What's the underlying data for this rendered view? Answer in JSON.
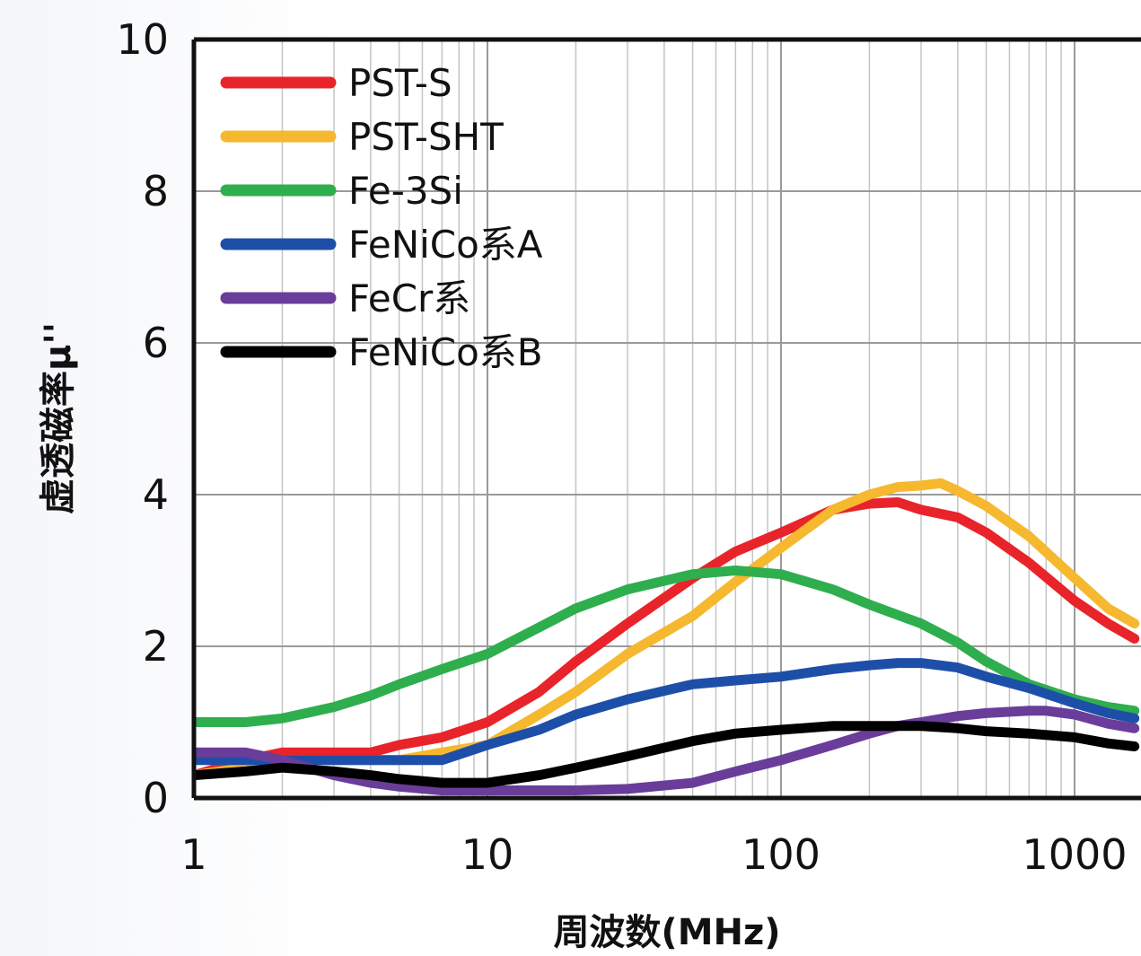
{
  "chart_data": {
    "type": "line",
    "x_scale": "log",
    "xlim": [
      1,
      1600
    ],
    "ylim": [
      0,
      10
    ],
    "xlabel": "周波数(MHz)",
    "ylabel": "虚透磁率μ''",
    "x_ticks": [
      1,
      10,
      100,
      1000
    ],
    "x_tick_labels": [
      "1",
      "10",
      "100",
      "1000"
    ],
    "y_ticks": [
      0,
      2,
      4,
      6,
      8,
      10
    ],
    "y_tick_labels": [
      "0",
      "2",
      "4",
      "6",
      "8",
      "10"
    ],
    "grid": true,
    "legend_position": "top-left",
    "series": [
      {
        "name": "PST-S",
        "color": "#e8242a",
        "x": [
          1,
          1.5,
          2,
          3,
          4,
          5,
          7,
          10,
          15,
          20,
          30,
          50,
          70,
          100,
          150,
          200,
          250,
          300,
          400,
          500,
          700,
          1000,
          1300,
          1600
        ],
        "y": [
          0.3,
          0.5,
          0.6,
          0.6,
          0.6,
          0.7,
          0.8,
          1.0,
          1.4,
          1.8,
          2.3,
          2.9,
          3.25,
          3.5,
          3.8,
          3.88,
          3.9,
          3.8,
          3.7,
          3.5,
          3.1,
          2.6,
          2.3,
          2.1
        ]
      },
      {
        "name": "PST-SHT",
        "color": "#f5b82e",
        "x": [
          1,
          1.5,
          2,
          3,
          4,
          5,
          7,
          10,
          15,
          20,
          30,
          50,
          70,
          100,
          150,
          200,
          250,
          300,
          350,
          400,
          500,
          700,
          1000,
          1300,
          1600
        ],
        "y": [
          0.3,
          0.4,
          0.5,
          0.5,
          0.5,
          0.5,
          0.6,
          0.7,
          1.1,
          1.4,
          1.9,
          2.4,
          2.85,
          3.3,
          3.8,
          4.0,
          4.1,
          4.12,
          4.15,
          4.05,
          3.85,
          3.45,
          2.9,
          2.5,
          2.3
        ]
      },
      {
        "name": "Fe-3Si",
        "color": "#2fae4e",
        "x": [
          1,
          1.5,
          2,
          3,
          4,
          5,
          7,
          10,
          15,
          20,
          30,
          50,
          70,
          100,
          150,
          200,
          300,
          400,
          500,
          700,
          1000,
          1300,
          1600
        ],
        "y": [
          1.0,
          1.0,
          1.05,
          1.2,
          1.35,
          1.5,
          1.7,
          1.9,
          2.25,
          2.5,
          2.75,
          2.95,
          3.0,
          2.95,
          2.75,
          2.55,
          2.3,
          2.05,
          1.8,
          1.5,
          1.3,
          1.2,
          1.15
        ]
      },
      {
        "name": "FeNiCo系A",
        "color": "#1e4fa8",
        "x": [
          1,
          1.5,
          2,
          3,
          4,
          5,
          7,
          10,
          15,
          20,
          30,
          50,
          70,
          100,
          150,
          200,
          250,
          300,
          400,
          500,
          700,
          1000,
          1300,
          1600
        ],
        "y": [
          0.5,
          0.5,
          0.5,
          0.5,
          0.5,
          0.5,
          0.5,
          0.7,
          0.9,
          1.1,
          1.3,
          1.5,
          1.55,
          1.6,
          1.7,
          1.75,
          1.78,
          1.78,
          1.72,
          1.6,
          1.45,
          1.25,
          1.12,
          1.05
        ]
      },
      {
        "name": "FeCr系",
        "color": "#6a3d9a",
        "x": [
          1,
          1.5,
          2,
          3,
          4,
          5,
          7,
          10,
          15,
          20,
          30,
          50,
          70,
          100,
          150,
          200,
          250,
          300,
          400,
          500,
          700,
          800,
          1000,
          1300,
          1600
        ],
        "y": [
          0.6,
          0.6,
          0.5,
          0.3,
          0.2,
          0.15,
          0.1,
          0.1,
          0.1,
          0.1,
          0.12,
          0.2,
          0.35,
          0.5,
          0.7,
          0.85,
          0.95,
          1.0,
          1.08,
          1.12,
          1.15,
          1.15,
          1.1,
          0.98,
          0.92
        ]
      },
      {
        "name": "FeNiCo系B",
        "color": "#000000",
        "x": [
          1,
          1.5,
          2,
          3,
          4,
          5,
          7,
          10,
          15,
          20,
          30,
          50,
          70,
          100,
          150,
          200,
          300,
          400,
          500,
          700,
          1000,
          1300,
          1600
        ],
        "y": [
          0.3,
          0.35,
          0.4,
          0.35,
          0.3,
          0.25,
          0.2,
          0.2,
          0.3,
          0.4,
          0.55,
          0.75,
          0.85,
          0.9,
          0.95,
          0.95,
          0.95,
          0.92,
          0.88,
          0.85,
          0.8,
          0.72,
          0.68
        ]
      }
    ]
  }
}
